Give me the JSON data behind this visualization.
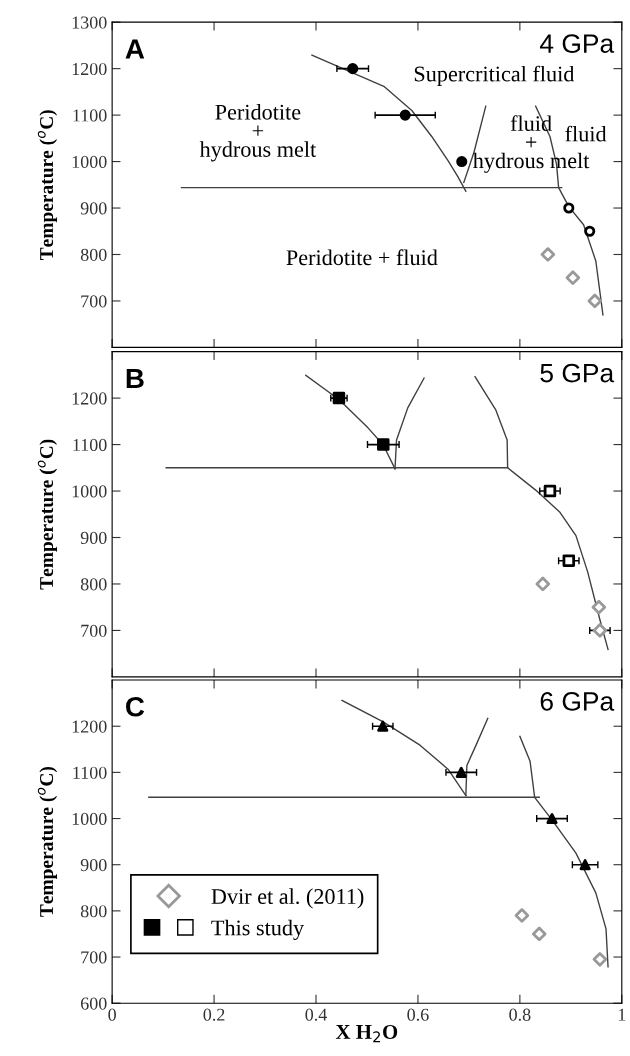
{
  "chart_data": [
    {
      "type": "scatter",
      "title": "A",
      "subtitle": "4 GPa",
      "ylabel": "Temperature ($^{o}$C)",
      "xlim": [
        0,
        1
      ],
      "ylim": [
        600,
        1300
      ],
      "xticks": [
        0,
        0.2,
        0.4,
        0.6,
        0.8,
        1
      ],
      "yticks": [
        700,
        800,
        900,
        1000,
        1100,
        1200,
        1300
      ],
      "tick_labels": "y",
      "grid": false,
      "legend": false,
      "annotations": [
        "Supercritical fluid",
        "Peridotite\n+\nhydrous melt",
        "fluid\n+\nhydrous melt",
        "fluid",
        "Peridotite + fluid"
      ],
      "series": [
        {
          "type": "line",
          "color": "#404040",
          "marker": "none",
          "x": [
            0.392,
            0.472,
            0.533,
            0.588,
            0.627,
            0.659,
            0.678,
            0.694
          ],
          "values": [
            1229,
            1191,
            1162,
            1110,
            1054,
            1002,
            968,
            936
          ]
        },
        {
          "type": "line",
          "color": "#404040",
          "marker": "none",
          "x": [
            0.136,
            0.882
          ],
          "values": [
            944,
            944
          ]
        },
        {
          "type": "line",
          "color": "#404040",
          "marker": "none",
          "x": [
            0.69,
            0.71,
            0.733
          ],
          "values": [
            955,
            1020,
            1119
          ]
        },
        {
          "type": "line",
          "color": "#404040",
          "marker": "none",
          "x": [
            0.831,
            0.859,
            0.872,
            0.876,
            0.896,
            0.925,
            0.949,
            0.963
          ],
          "values": [
            1119,
            1054,
            994,
            944,
            903,
            864,
            786,
            670
          ]
        },
        {
          "type": "scatter",
          "color": "#000000",
          "marker": "circle",
          "x": [
            0.472,
            0.575,
            0.686
          ],
          "values": [
            1200,
            1100,
            1000
          ],
          "xerrors": [
            0.031,
            0.059,
            null
          ]
        },
        {
          "type": "scatter",
          "color": "#ffffff",
          "marker": "circle",
          "x": [
            0.896,
            0.937
          ],
          "values": [
            900,
            850
          ]
        },
        {
          "type": "scatter",
          "color": "#999999",
          "marker": "diamond",
          "x": [
            0.855,
            0.904,
            0.947
          ],
          "values": [
            800,
            750,
            700
          ]
        }
      ]
    },
    {
      "type": "scatter",
      "title": "B",
      "subtitle": "5 GPa",
      "ylabel": "Temperature ($^{o}$C)",
      "xlim": [
        0,
        1
      ],
      "ylim": [
        600,
        1300
      ],
      "xticks": [
        0,
        0.2,
        0.4,
        0.6,
        0.8,
        1
      ],
      "yticks": [
        700,
        800,
        900,
        1000,
        1100,
        1200
      ],
      "tick_labels": "y",
      "grid": false,
      "legend": false,
      "series": [
        {
          "type": "line",
          "color": "#404040",
          "marker": "none",
          "x": [
            0.38,
            0.445,
            0.502,
            0.532,
            0.555
          ],
          "values": [
            1249,
            1197,
            1136,
            1099,
            1048
          ]
        },
        {
          "type": "line",
          "color": "#404040",
          "marker": "none",
          "x": [
            0.106,
            0.776
          ],
          "values": [
            1050,
            1050
          ]
        },
        {
          "type": "line",
          "color": "#404040",
          "marker": "none",
          "x": [
            0.555,
            0.558,
            0.58,
            0.612
          ],
          "values": [
            1048,
            1110,
            1179,
            1243
          ]
        },
        {
          "type": "line",
          "color": "#404040",
          "marker": "none",
          "x": [
            0.712,
            0.753,
            0.775,
            0.776,
            0.831,
            0.878,
            0.91,
            0.933,
            0.957,
            0.973
          ],
          "values": [
            1246,
            1174,
            1110,
            1050,
            1002,
            955,
            904,
            826,
            723,
            659
          ]
        },
        {
          "type": "scatter",
          "color": "#000000",
          "marker": "square",
          "x": [
            0.445,
            0.532
          ],
          "values": [
            1200,
            1100
          ],
          "xerrors": [
            0.016,
            0.031
          ]
        },
        {
          "type": "scatter",
          "color": "#ffffff",
          "marker": "square",
          "x": [
            0.859,
            0.896
          ],
          "values": [
            1000,
            850
          ],
          "xerrors": [
            0.02,
            0.02
          ]
        },
        {
          "type": "scatter",
          "color": "#999999",
          "marker": "diamond",
          "x": [
            0.845,
            0.955,
            0.957
          ],
          "values": [
            800,
            750,
            700
          ],
          "xerrors": [
            null,
            null,
            0.02
          ]
        }
      ]
    },
    {
      "type": "scatter",
      "title": "C",
      "subtitle": "6 GPa",
      "xlabel": "X H$_{2}$O",
      "ylabel": "Temperature ($^{o}$C)",
      "xlim": [
        0,
        1
      ],
      "ylim": [
        600,
        1300
      ],
      "xticks": [
        0,
        0.2,
        0.4,
        0.6,
        0.8,
        1
      ],
      "yticks": [
        600,
        700,
        800,
        900,
        1000,
        1100,
        1200
      ],
      "grid": false,
      "legend": "bottom left",
      "series": [
        {
          "type": "line",
          "color": "#404040",
          "marker": "none",
          "x": [
            0.451,
            0.531,
            0.604,
            0.659,
            0.694
          ],
          "values": [
            1256,
            1210,
            1159,
            1107,
            1050
          ]
        },
        {
          "type": "line",
          "color": "#404040",
          "marker": "none",
          "x": [
            0.072,
            0.838
          ],
          "values": [
            1046,
            1046
          ]
        },
        {
          "type": "line",
          "color": "#404040",
          "marker": "none",
          "x": [
            0.694,
            0.696,
            0.714,
            0.737
          ],
          "values": [
            1050,
            1115,
            1159,
            1217
          ]
        },
        {
          "type": "line",
          "color": "#404040",
          "marker": "none",
          "x": [
            0.8,
            0.82,
            0.829,
            0.863,
            0.91,
            0.949,
            0.969,
            0.973
          ],
          "values": [
            1178,
            1124,
            1046,
            997,
            925,
            839,
            761,
            679
          ]
        },
        {
          "type": "scatter",
          "name": "This study",
          "color": "#000000",
          "marker": "triangle",
          "x": [
            0.531,
            0.685,
            0.863,
            0.928
          ],
          "values": [
            1200,
            1100,
            1000,
            900
          ],
          "xerrors": [
            0.02,
            0.03,
            0.03,
            0.025
          ]
        },
        {
          "type": "scatter",
          "name": "Dvir et al. (2011)",
          "color": "#999999",
          "marker": "diamond",
          "x": [
            0.804,
            0.838,
            0.957
          ],
          "values": [
            790,
            750,
            695
          ]
        }
      ]
    }
  ]
}
